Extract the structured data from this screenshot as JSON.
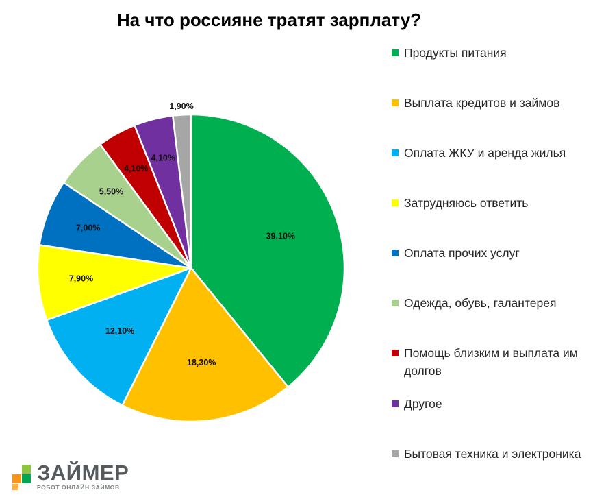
{
  "chart_data": {
    "type": "pie",
    "title": "На что россияне тратят зарплату?",
    "categories": [
      "Продукты питания",
      "Выплата кредитов и займов",
      "Оплата ЖКУ и аренда жилья",
      "Затрудняюсь ответить",
      "Оплата прочих услуг",
      "Одежда, обувь, галантерея",
      "Помощь близким и выплата им долгов",
      "Другое",
      "Бытовая техника и электроника"
    ],
    "values": [
      39.1,
      18.3,
      12.1,
      7.9,
      7.0,
      5.5,
      4.1,
      4.1,
      1.9
    ],
    "data_labels": [
      "39,10%",
      "18,30%",
      "12,10%",
      "7,90%",
      "7,00%",
      "5,50%",
      "4,10%",
      "4,10%",
      "1,90%"
    ],
    "colors": [
      "#00b050",
      "#ffc000",
      "#00b0f0",
      "#ffff00",
      "#0070c0",
      "#a9d18e",
      "#c00000",
      "#7030a0",
      "#a6a6a6"
    ],
    "legend_position": "right"
  },
  "logo": {
    "word": "ЗАЙМЕР",
    "tagline": "РОБОТ ОНЛАЙН ЗАЙМОВ",
    "colors": [
      "#8cc63f",
      "#f7941d",
      "#00a651",
      "#fbb040"
    ]
  }
}
